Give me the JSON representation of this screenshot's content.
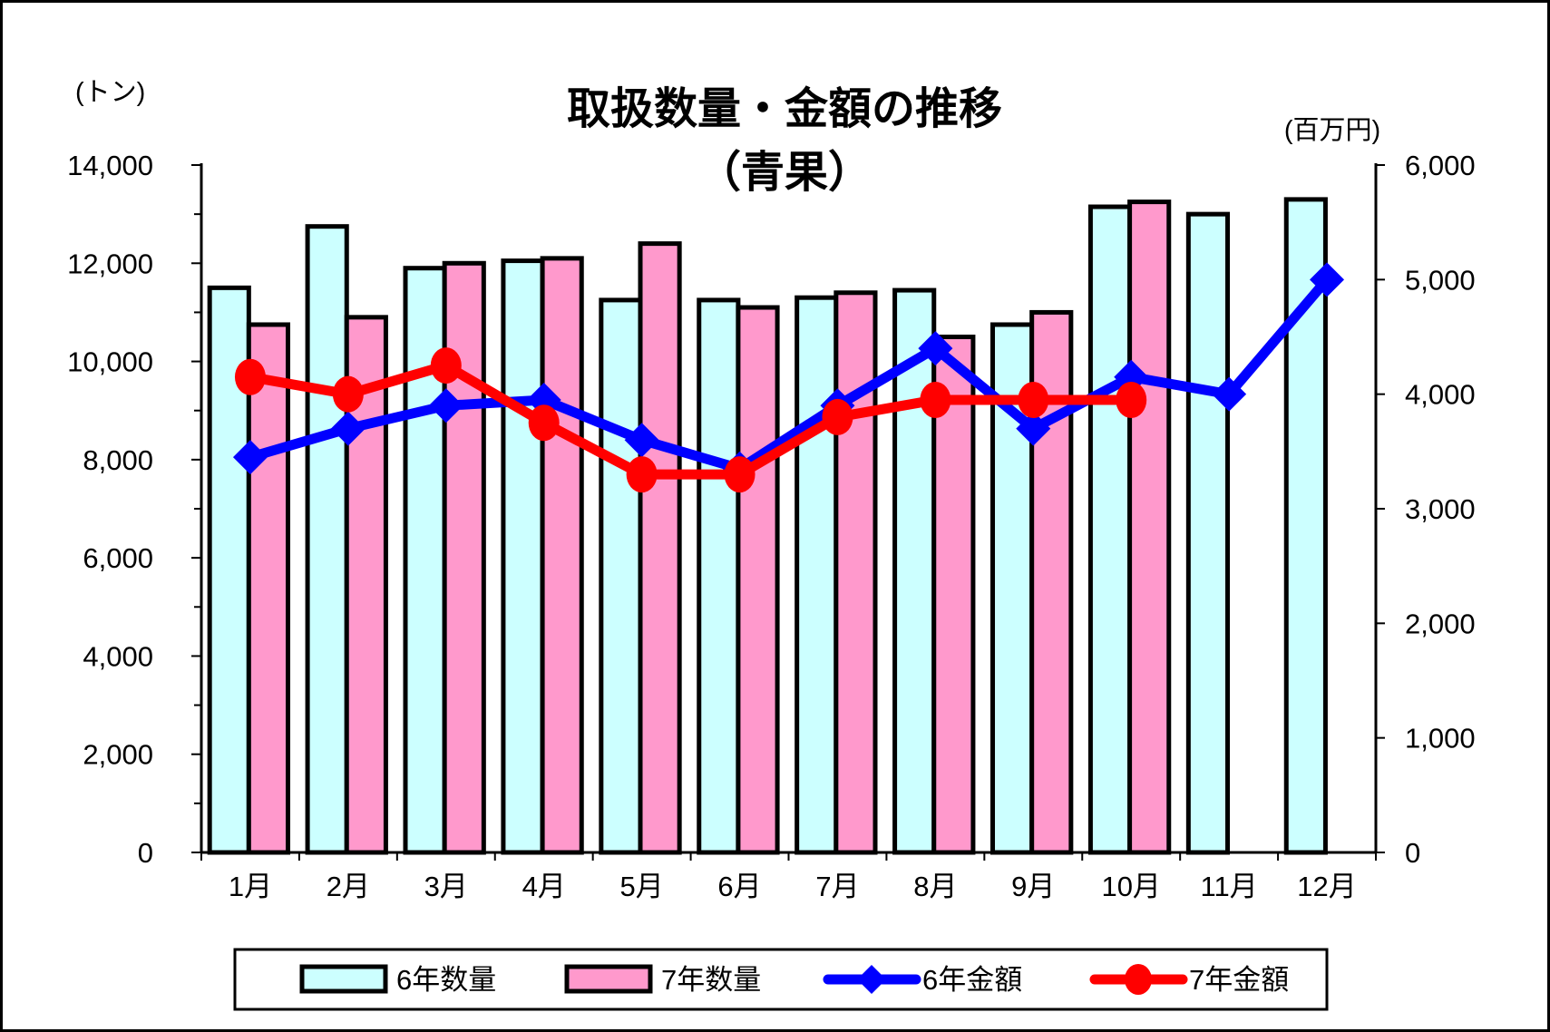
{
  "title": {
    "line1": "取扱数量・金額の推移",
    "line2": "（青果）"
  },
  "left_axis": {
    "caption": "(トン)",
    "labels": [
      "0",
      "2,000",
      "4,000",
      "6,000",
      "8,000",
      "10,000",
      "12,000",
      "14,000"
    ],
    "min": 0,
    "max": 14000,
    "label_step": 2000,
    "minor_tick_step": 1000
  },
  "right_axis": {
    "caption": "(百万円)",
    "labels": [
      "0",
      "1,000",
      "2,000",
      "3,000",
      "4,000",
      "5,000",
      "6,000"
    ],
    "min": 0,
    "max": 6000,
    "label_step": 1000
  },
  "x_axis": {
    "labels": [
      "1月",
      "2月",
      "3月",
      "4月",
      "5月",
      "6月",
      "7月",
      "8月",
      "9月",
      "10月",
      "11月",
      "12月"
    ]
  },
  "legend": {
    "items": [
      {
        "label": "6年数量",
        "type": "bar",
        "color": "#CCFFFF"
      },
      {
        "label": "7年数量",
        "type": "bar",
        "color": "#FF99CC"
      },
      {
        "label": "6年金額",
        "type": "line",
        "marker": "diamond",
        "color": "#0000FF"
      },
      {
        "label": "7年金額",
        "type": "line",
        "marker": "circle",
        "color": "#FF0000"
      }
    ]
  },
  "colors": {
    "bar_quantity_y6": "#CCFFFF",
    "bar_quantity_y7": "#FF99CC",
    "line_amount_y6": "#0000FF",
    "line_amount_y7": "#FF0000",
    "bar_outline": "#000000",
    "axis": "#000000"
  },
  "chart_data": {
    "type": "bar",
    "subtype": "combo-bar-line",
    "title": "取扱数量・金額の推移（青果）",
    "categories": [
      "1月",
      "2月",
      "3月",
      "4月",
      "5月",
      "6月",
      "7月",
      "8月",
      "9月",
      "10月",
      "11月",
      "12月"
    ],
    "left_ylabel": "(トン)",
    "right_ylabel": "(百万円)",
    "left_ylim": [
      0,
      14000
    ],
    "right_ylim": [
      0,
      6000
    ],
    "grid": false,
    "legend_position": "bottom",
    "series": [
      {
        "name": "6年数量",
        "type": "bar",
        "axis": "left",
        "color": "#CCFFFF",
        "values": [
          11500,
          12750,
          11900,
          12050,
          11250,
          11250,
          11300,
          11450,
          10750,
          13150,
          13000,
          13300
        ]
      },
      {
        "name": "7年数量",
        "type": "bar",
        "axis": "left",
        "color": "#FF99CC",
        "values": [
          10750,
          10900,
          12000,
          12100,
          12400,
          11100,
          11400,
          10500,
          11000,
          13250,
          null,
          null
        ]
      },
      {
        "name": "6年金額",
        "type": "line",
        "axis": "right",
        "color": "#0000FF",
        "marker": "diamond",
        "values": [
          3450,
          3700,
          3900,
          3950,
          3600,
          3350,
          3900,
          4400,
          3700,
          4150,
          4000,
          5000
        ]
      },
      {
        "name": "7年金額",
        "type": "line",
        "axis": "right",
        "color": "#FF0000",
        "marker": "circle",
        "values": [
          4150,
          4000,
          4250,
          3750,
          3300,
          3300,
          3800,
          3950,
          3950,
          3950,
          null,
          null
        ]
      }
    ]
  }
}
